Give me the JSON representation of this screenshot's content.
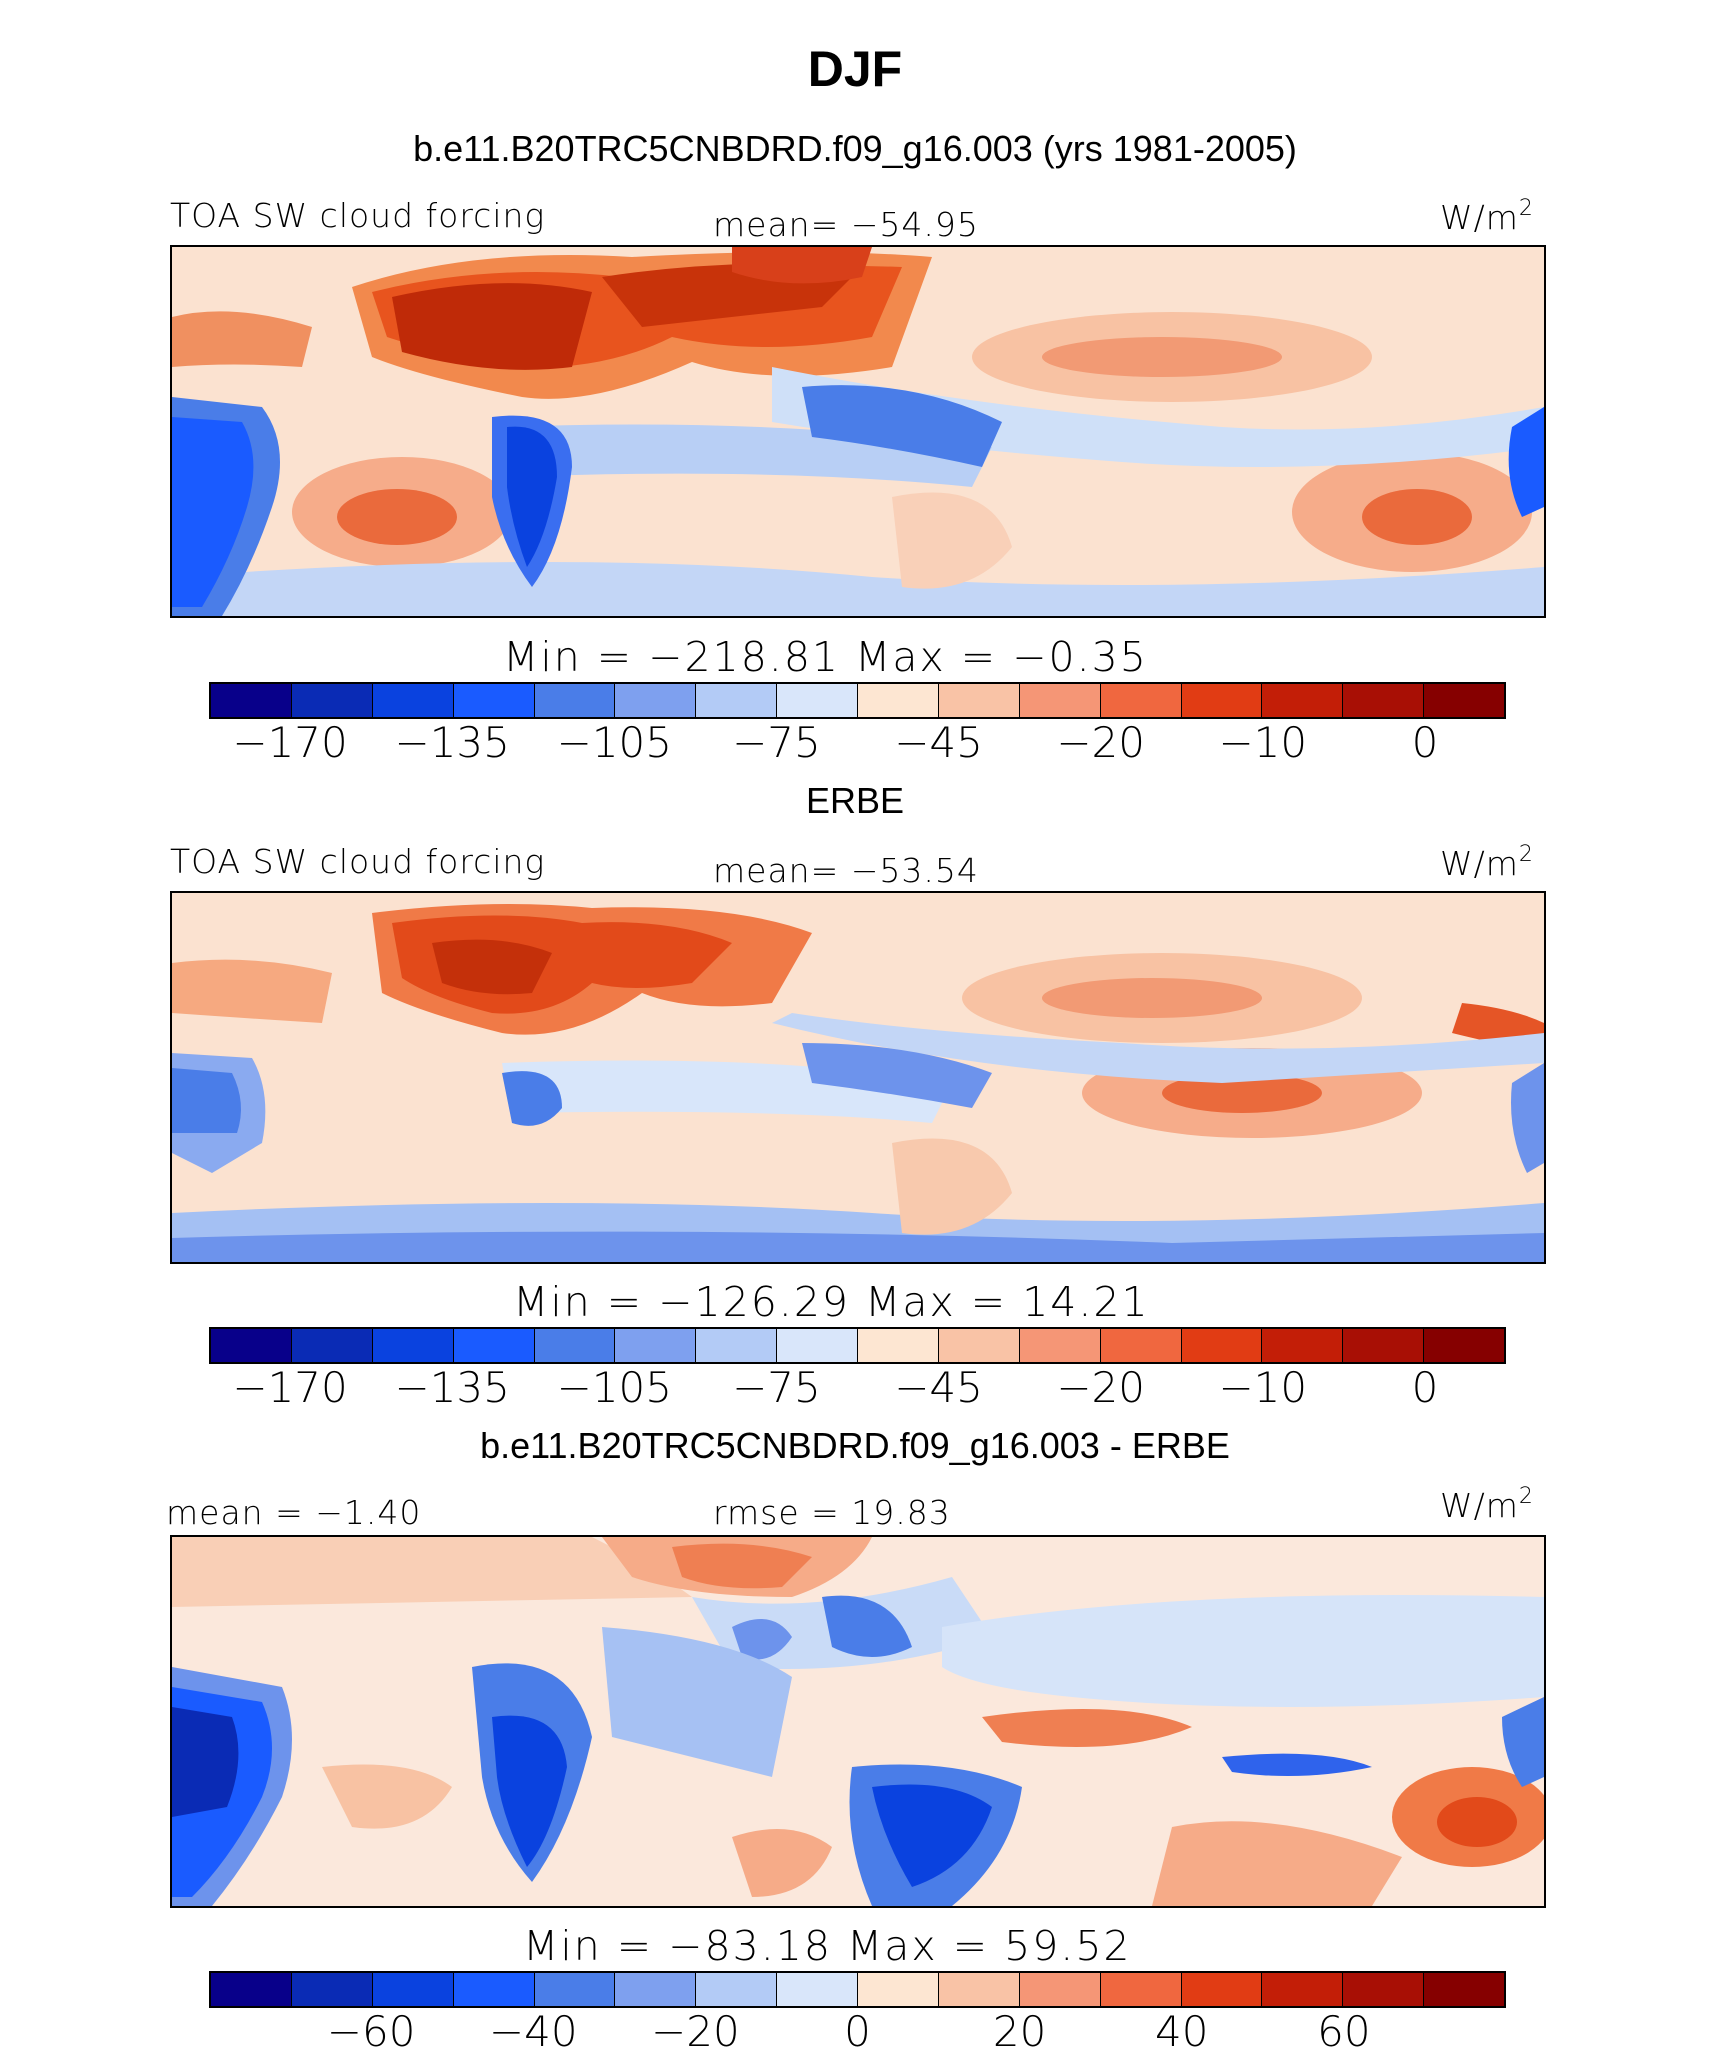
{
  "title": "DJF",
  "panels": [
    {
      "subtitle": "b.e11.B20TRC5CNBDRD.f09_g16.003 (yrs 1981-2005)",
      "left_label": "TOA SW cloud forcing",
      "center_label": "mean= −54.95",
      "units_base": "W/m",
      "units_exp": "2",
      "minmax": "Min = −218.81  Max =  −0.35",
      "colorbar_ticks": [
        "−170",
        "−135",
        "−105",
        "−75",
        "−45",
        "−20",
        "−10",
        "0"
      ]
    },
    {
      "subtitle": "ERBE",
      "left_label": "TOA SW cloud forcing",
      "center_label": "mean= −53.54",
      "units_base": "W/m",
      "units_exp": "2",
      "minmax": "Min = −126.29  Max =  14.21",
      "colorbar_ticks": [
        "−170",
        "−135",
        "−105",
        "−75",
        "−45",
        "−20",
        "−10",
        "0"
      ]
    },
    {
      "subtitle": "b.e11.B20TRC5CNBDRD.f09_g16.003 - ERBE",
      "left_label": "mean =  −1.40",
      "center_label": "rmse =  19.83",
      "units_base": "W/m",
      "units_exp": "2",
      "minmax": "Min = −83.18  Max =  59.52",
      "colorbar_ticks": [
        "−60",
        "−40",
        "−20",
        "0",
        "20",
        "40",
        "60"
      ]
    }
  ],
  "colorbar_colors": [
    "#08008a",
    "#0a2bb5",
    "#0a42df",
    "#1a5bff",
    "#4a7de8",
    "#7ea0ef",
    "#b3cbf6",
    "#d9e6fa",
    "#fde6d2",
    "#f9c3a6",
    "#f59676",
    "#f0673f",
    "#e13c14",
    "#c31e07",
    "#a80f05",
    "#860000"
  ],
  "chart_data": [
    {
      "type": "heatmap",
      "title": "b.e11.B20TRC5CNBDRD.f09_g16.003 (yrs 1981-2005)",
      "variable": "TOA SW cloud forcing",
      "units": "W/m2",
      "mean": -54.95,
      "min": -218.81,
      "max": -0.35,
      "contour_levels": [
        -170,
        -150,
        -135,
        -120,
        -105,
        -90,
        -75,
        -60,
        -45,
        -30,
        -20,
        -15,
        -10,
        -5,
        0
      ]
    },
    {
      "type": "heatmap",
      "title": "ERBE",
      "variable": "TOA SW cloud forcing",
      "units": "W/m2",
      "mean": -53.54,
      "min": -126.29,
      "max": 14.21,
      "contour_levels": [
        -170,
        -150,
        -135,
        -120,
        -105,
        -90,
        -75,
        -60,
        -45,
        -30,
        -20,
        -15,
        -10,
        -5,
        0
      ]
    },
    {
      "type": "heatmap",
      "title": "b.e11.B20TRC5CNBDRD.f09_g16.003 - ERBE",
      "units": "W/m2",
      "mean": -1.4,
      "rmse": 19.83,
      "min": -83.18,
      "max": 59.52,
      "contour_levels": [
        -70,
        -60,
        -50,
        -40,
        -30,
        -20,
        -10,
        0,
        10,
        20,
        30,
        40,
        50,
        60,
        70
      ]
    }
  ]
}
